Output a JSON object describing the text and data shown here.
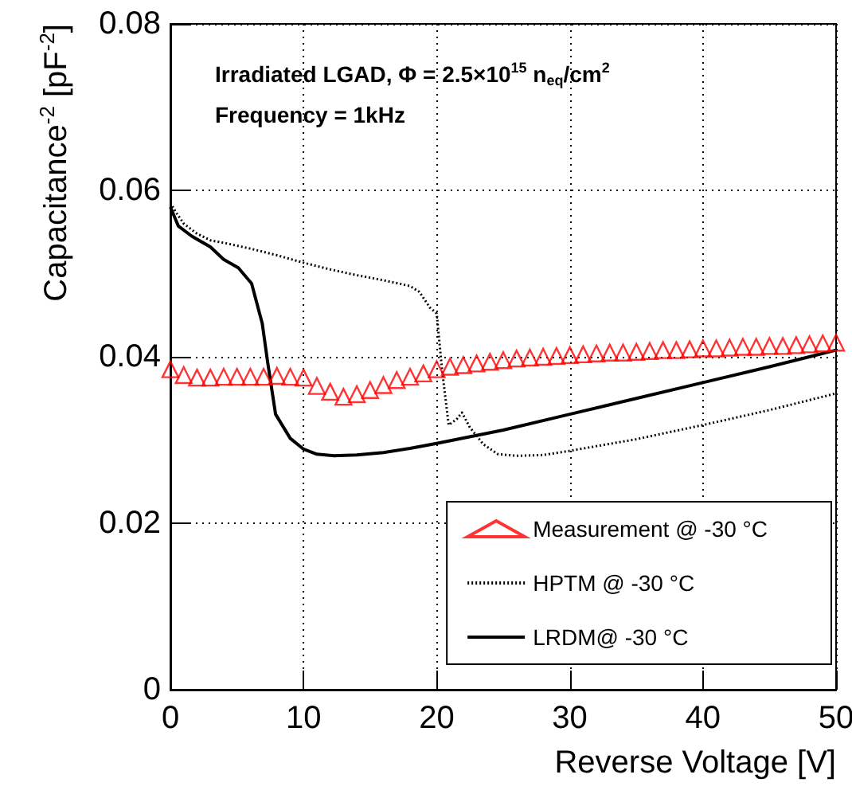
{
  "chart_data": {
    "type": "line",
    "xlabel": "Reverse Voltage [V]",
    "ylabel": "Capacitance$^{-2}$ [pF$^{-2}$]",
    "annotations": [
      "Irradiated LGAD, Φ = 2.5×10$^{15}$ n$_{eq}$/cm$^{2}$",
      "Frequency = 1kHz"
    ],
    "xlim": [
      0,
      50
    ],
    "xticks": [
      0,
      10,
      20,
      30,
      40,
      50
    ],
    "ylim": [
      0,
      0.08
    ],
    "yticks": [
      0,
      0.02,
      0.04,
      0.06,
      0.08
    ],
    "grid": true,
    "legend": "bottom right",
    "series": [
      {
        "name": "Measurement @ -30 °C",
        "type": "scatter",
        "marker": "triangle",
        "color": "#ff0000",
        "x": [
          0,
          1,
          2,
          3,
          4,
          5,
          6,
          7,
          8,
          9,
          10,
          11,
          12,
          13,
          14,
          15,
          16,
          17,
          18,
          19,
          20,
          21,
          22,
          23,
          24,
          25,
          26,
          27,
          28,
          29,
          30,
          31,
          32,
          33,
          34,
          35,
          36,
          37,
          38,
          39,
          40,
          41,
          42,
          43,
          44,
          45,
          46,
          47,
          48,
          49,
          50
        ],
        "values": [
          0.0385,
          0.0378,
          0.0375,
          0.0375,
          0.0376,
          0.0376,
          0.0376,
          0.0376,
          0.0377,
          0.0376,
          0.0375,
          0.0365,
          0.0358,
          0.0352,
          0.0355,
          0.036,
          0.0366,
          0.0372,
          0.0376,
          0.038,
          0.0385,
          0.0388,
          0.039,
          0.0392,
          0.0394,
          0.0396,
          0.0398,
          0.0399,
          0.04,
          0.0401,
          0.0402,
          0.0403,
          0.0404,
          0.0405,
          0.0405,
          0.0406,
          0.0407,
          0.0408,
          0.0408,
          0.0409,
          0.041,
          0.041,
          0.0411,
          0.0412,
          0.0412,
          0.0413,
          0.0413,
          0.0414,
          0.0415,
          0.0416,
          0.0417
        ]
      },
      {
        "name": "HPTM @ -30 °C",
        "type": "line",
        "marker": "none",
        "line_style": "dotted",
        "color": "#000000",
        "x": [
          0,
          0.4,
          1,
          2,
          3,
          4.3,
          6,
          8,
          10,
          12,
          14,
          16,
          18,
          18.7,
          19.5,
          20,
          20.4,
          20.9,
          21.5,
          21.9,
          22.5,
          23.5,
          24.6,
          26,
          28,
          30,
          35,
          40,
          45,
          50
        ],
        "values": [
          0.0585,
          0.0574,
          0.056,
          0.0548,
          0.054,
          0.0536,
          0.053,
          0.0522,
          0.0513,
          0.0505,
          0.0498,
          0.0492,
          0.0485,
          0.0478,
          0.0459,
          0.0452,
          0.0385,
          0.0318,
          0.0325,
          0.0333,
          0.0315,
          0.0295,
          0.0283,
          0.0281,
          0.0282,
          0.0287,
          0.0301,
          0.0318,
          0.0336,
          0.0356
        ]
      },
      {
        "name": "LRDM@ -30 °C",
        "type": "line",
        "marker": "none",
        "line_style": "solid",
        "color": "#000000",
        "x": [
          0,
          0.6,
          1.6,
          3,
          4,
          5.1,
          6.1,
          6.9,
          7.3,
          7.9,
          9,
          10,
          11,
          12.3,
          14,
          16,
          18,
          20,
          25,
          30,
          35,
          40,
          45,
          50
        ],
        "values": [
          0.058,
          0.0557,
          0.0545,
          0.0532,
          0.0517,
          0.0507,
          0.0488,
          0.044,
          0.0394,
          0.0331,
          0.0302,
          0.0289,
          0.0283,
          0.0281,
          0.0282,
          0.0285,
          0.029,
          0.0296,
          0.0312,
          0.0331,
          0.035,
          0.0369,
          0.0388,
          0.0408
        ]
      }
    ]
  }
}
